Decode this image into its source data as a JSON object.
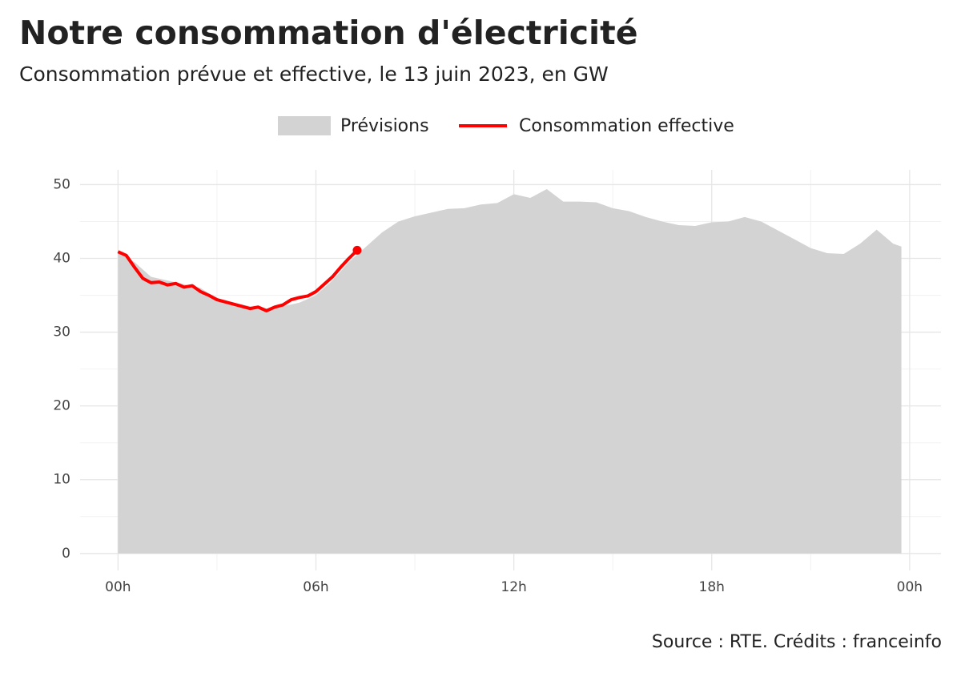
{
  "chart_data": {
    "type": "line",
    "title": "Notre consommation d'électricité",
    "subtitle": "Consommation prévue et effective, le 13 juin 2023, en GW",
    "source": "Source : RTE. Crédits : franceinfo",
    "xlim": [
      -1.15,
      24.95
    ],
    "xticks": [
      {
        "value": 0,
        "label": "00h"
      },
      {
        "value": 6,
        "label": "06h"
      },
      {
        "value": 12,
        "label": "12h"
      },
      {
        "value": 18,
        "label": "18h"
      },
      {
        "value": 24,
        "label": "00h"
      }
    ],
    "x_minor_ticks": [
      3,
      9,
      15,
      21
    ],
    "ylim": [
      -2.3,
      52
    ],
    "yticks": [
      0,
      10,
      20,
      30,
      40,
      50
    ],
    "y_minor_ticks": [
      5,
      15,
      25,
      35,
      45
    ],
    "grid": true,
    "legend": "top",
    "series": [
      {
        "name": "Prévisions",
        "type": "area",
        "color": "#d3d3d3",
        "x": [
          0,
          0.5,
          1,
          1.5,
          2,
          2.5,
          3,
          3.5,
          4,
          4.5,
          5,
          5.5,
          6,
          6.5,
          7,
          7.5,
          8,
          8.5,
          9,
          9.5,
          10,
          10.5,
          11,
          11.5,
          12,
          12.5,
          13,
          13.5,
          14,
          14.5,
          15,
          15.5,
          16,
          16.5,
          17,
          17.5,
          18,
          18.5,
          19,
          19.5,
          20,
          20.5,
          21,
          21.5,
          22,
          22.5,
          23,
          23.5,
          23.75
        ],
        "values": [
          40.8,
          39.5,
          37.5,
          37,
          36.5,
          36,
          34.5,
          34,
          33.5,
          33.2,
          33.5,
          34,
          35,
          37,
          39.5,
          41.5,
          43.5,
          45,
          45.7,
          46.2,
          46.7,
          46.8,
          47.3,
          47.5,
          48.7,
          48.2,
          49.4,
          47.7,
          47.7,
          47.6,
          46.8,
          46.4,
          45.6,
          45,
          44.5,
          44.4,
          44.9,
          45,
          45.6,
          45,
          43.8,
          42.6,
          41.4,
          40.7,
          40.6,
          42,
          43.9,
          42,
          41.6
        ]
      },
      {
        "name": "Consommation effective",
        "type": "line",
        "color": "#ff0000",
        "x": [
          0,
          0.25,
          0.5,
          0.75,
          1,
          1.25,
          1.5,
          1.75,
          2,
          2.25,
          2.5,
          2.75,
          3,
          3.25,
          3.5,
          3.75,
          4,
          4.25,
          4.5,
          4.75,
          5,
          5.25,
          5.5,
          5.75,
          6,
          6.25,
          6.5,
          6.75,
          7,
          7.25
        ],
        "values": [
          40.9,
          40.4,
          38.8,
          37.3,
          36.7,
          36.8,
          36.4,
          36.6,
          36.1,
          36.3,
          35.5,
          35,
          34.4,
          34.1,
          33.8,
          33.5,
          33.2,
          33.4,
          32.9,
          33.4,
          33.7,
          34.4,
          34.7,
          34.9,
          35.5,
          36.5,
          37.5,
          38.8,
          40,
          41.1
        ]
      }
    ]
  }
}
